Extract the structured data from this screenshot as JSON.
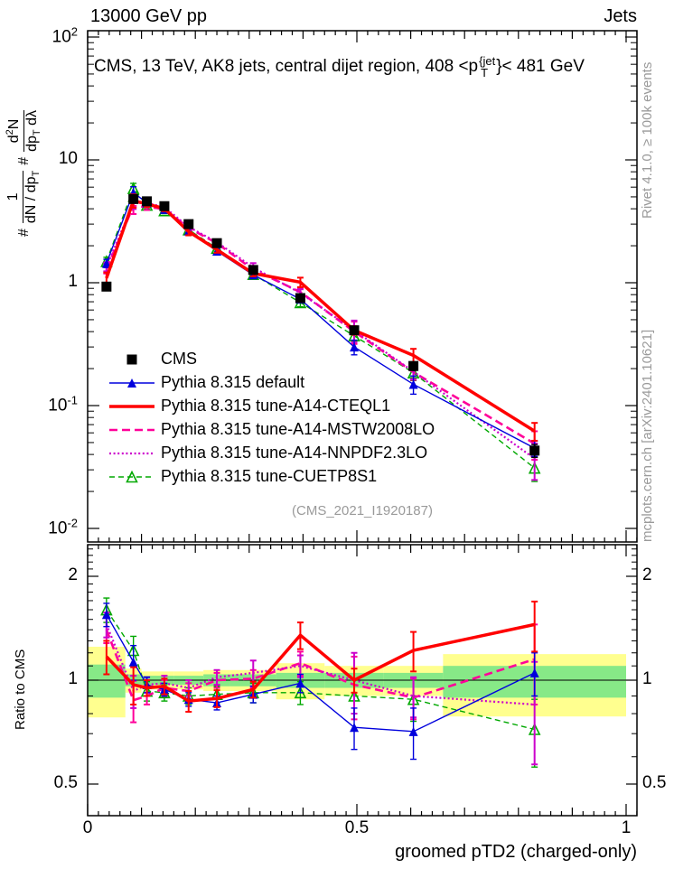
{
  "header": {
    "beam": "13000 GeV pp",
    "category": "Jets"
  },
  "plot_title_tokens": [
    {
      "t": "CMS, 13 TeV, AK8 jets, central dijet region, 408 <p"
    },
    {
      "stack": {
        "sup": "{jet",
        "sub": "T"
      }
    },
    {
      "t": "}< 481 GeV"
    }
  ],
  "watermark": "(CMS_2021_I1920187)",
  "side_notes": {
    "top": "Rivet 4.1.0, ≥ 100k events",
    "bottom": "mcplots.cern.ch [arXiv:2401.10621]"
  },
  "xlabel": "groomed pTD2 (charged-only)",
  "ratio_ylabel": "Ratio to CMS",
  "main_ylabel": {
    "hash1": "#",
    "f1_num": "1",
    "f1_den": [
      {
        "t": "dN / dp"
      },
      {
        "sub": "T"
      }
    ],
    "hash2": "#",
    "f2_num": [
      {
        "t": "d"
      },
      {
        "sup": "2"
      },
      {
        "t": "N"
      }
    ],
    "f2_den": [
      {
        "t": "dp"
      },
      {
        "sub": "T"
      },
      {
        "t": " dλ"
      }
    ]
  },
  "colors": {
    "cms": "#000000",
    "pythia_default": "#0000dd",
    "cteql1": "#ff0000",
    "mstw": "#ff0099",
    "nnpdf": "#cc00cc",
    "cuetp8s1": "#00a800",
    "band_outer": "#ffff8f",
    "band_inner": "#87e987",
    "note_gray": "#9a9a9a"
  },
  "chart_data": {
    "type": "line",
    "title": "CMS, 13 TeV, AK8 jets, central dijet region, 408 < pT{jet} < 481 GeV",
    "xlabel": "groomed pTD2 (charged-only)",
    "ylabel": "# 1/(dN/dpT)  # d2N/(dpT dlambda)",
    "ratio_ylabel": "Ratio to CMS",
    "legend_position": "inside-left-middle",
    "grid": false,
    "x_scale": "linear",
    "y_scale_main": "log",
    "y_scale_ratio": "log",
    "xlim": [
      0,
      1.02
    ],
    "ylim_main": [
      0.0078,
      112
    ],
    "ylim_ratio": [
      0.405,
      2.47
    ],
    "x_ticks": {
      "values": [
        0,
        0.5,
        1
      ],
      "labels": [
        "0",
        "0.5",
        "1"
      ]
    },
    "y_ticks_main": {
      "values": [
        100,
        10,
        1,
        0.1,
        0.01
      ],
      "labels": [
        "10^{2}",
        "10",
        "1",
        "10^{-1}",
        "10^{-2}"
      ]
    },
    "y_ticks_ratio": {
      "values": [
        2,
        1,
        0.5
      ],
      "labels": [
        "2",
        "1",
        "0.5"
      ]
    },
    "x": [
      0.035,
      0.085,
      0.11,
      0.1425,
      0.1875,
      0.24,
      0.3075,
      0.395,
      0.495,
      0.605,
      0.83
    ],
    "bin_edges": [
      0,
      0.07,
      0.1,
      0.125,
      0.16,
      0.215,
      0.265,
      0.35,
      0.44,
      0.55,
      0.66,
      1.0
    ],
    "series": [
      {
        "name": "CMS",
        "color": "#000000",
        "line": "none",
        "width": 0,
        "marker": "square",
        "marker_size": 11,
        "values": [
          0.93,
          4.8,
          4.6,
          4.2,
          3.0,
          2.1,
          1.27,
          0.75,
          0.41,
          0.21,
          0.043
        ],
        "rel_err": [
          0.04,
          0.03,
          0.03,
          0.03,
          0.03,
          0.03,
          0.04,
          0.05,
          0.06,
          0.08,
          0.12
        ],
        "ratio": [
          1,
          1,
          1,
          1,
          1,
          1,
          1,
          1,
          1,
          1,
          1
        ],
        "ratio_err": [
          0,
          0,
          0,
          0,
          0,
          0,
          0,
          0,
          0,
          0,
          0
        ]
      },
      {
        "name": "Pythia 8.315 default",
        "color": "#0000dd",
        "line": "solid",
        "width": 1.4,
        "marker": "triangle",
        "marker_size": 10,
        "values": [
          1.44,
          5.42,
          4.46,
          3.95,
          2.64,
          1.81,
          1.16,
          0.735,
          0.3,
          0.149,
          0.045
        ],
        "ratio": [
          1.55,
          1.13,
          0.97,
          0.94,
          0.88,
          0.86,
          0.91,
          0.98,
          0.73,
          0.71,
          1.05
        ],
        "ratio_err": [
          0.12,
          0.13,
          0.05,
          0.04,
          0.04,
          0.04,
          0.05,
          0.06,
          0.1,
          0.12,
          0.15
        ]
      },
      {
        "name": "Pythia 8.315 tune-A14-CTEQL1",
        "color": "#ff0000",
        "line": "solid",
        "width": 3.5,
        "marker": "none",
        "marker_size": 0,
        "values": [
          1.09,
          4.66,
          4.37,
          4.03,
          2.61,
          1.86,
          1.19,
          1.01,
          0.41,
          0.256,
          0.062
        ],
        "ratio": [
          1.17,
          0.97,
          0.95,
          0.96,
          0.87,
          0.885,
          0.94,
          1.35,
          1.0,
          1.22,
          1.45
        ],
        "ratio_err": [
          0.13,
          0.12,
          0.05,
          0.05,
          0.06,
          0.05,
          0.05,
          0.12,
          0.08,
          0.16,
          0.24
        ]
      },
      {
        "name": "Pythia 8.315 tune-A14-MSTW2008LO",
        "color": "#ff0099",
        "line": "dashed",
        "width": 2.6,
        "marker": "none",
        "marker_size": 0,
        "values": [
          1.3,
          4.2,
          4.14,
          3.99,
          2.79,
          2.1,
          1.28,
          0.84,
          0.4,
          0.187,
          0.049
        ],
        "ratio": [
          1.4,
          0.875,
          0.9,
          0.95,
          0.93,
          1.0,
          1.01,
          1.12,
          0.97,
          0.89,
          1.15
        ],
        "ratio_err": [
          0.12,
          0.12,
          0.05,
          0.05,
          0.05,
          0.05,
          0.06,
          0.09,
          0.2,
          0.12,
          0.3
        ]
      },
      {
        "name": "Pythia 8.315 tune-A14-NNPDF2.3LO",
        "color": "#cc00cc",
        "line": "dotted",
        "width": 2.2,
        "marker": "none",
        "marker_size": 0,
        "values": [
          1.35,
          4.46,
          4.46,
          4.12,
          2.85,
          2.14,
          1.33,
          0.825,
          0.41,
          0.189,
          0.037
        ],
        "ratio": [
          1.45,
          0.93,
          0.97,
          0.98,
          0.95,
          1.02,
          1.05,
          1.1,
          1.0,
          0.9,
          0.85
        ],
        "ratio_err": [
          0.12,
          0.1,
          0.05,
          0.05,
          0.05,
          0.05,
          0.09,
          0.08,
          0.2,
          0.12,
          0.28
        ]
      },
      {
        "name": "Pythia 8.315 tune-CUETP8S1",
        "color": "#00a800",
        "line": "dashed-small",
        "width": 1.4,
        "marker": "triangle-open",
        "marker_size": 11,
        "values": [
          1.49,
          5.86,
          4.28,
          3.86,
          2.7,
          1.91,
          1.17,
          0.69,
          0.37,
          0.185,
          0.031
        ],
        "ratio": [
          1.6,
          1.22,
          0.93,
          0.92,
          0.9,
          0.91,
          0.92,
          0.92,
          0.9,
          0.88,
          0.72
        ],
        "ratio_err": [
          0.13,
          0.12,
          0.06,
          0.05,
          0.05,
          0.05,
          0.06,
          0.07,
          0.1,
          0.12,
          0.16
        ]
      }
    ],
    "ratio_bands": {
      "outer": [
        [
          0.78,
          1.25
        ],
        [
          0.92,
          1.08
        ],
        [
          0.94,
          1.06
        ],
        [
          0.94,
          1.06
        ],
        [
          0.94,
          1.06
        ],
        [
          0.93,
          1.07
        ],
        [
          0.93,
          1.07
        ],
        [
          0.88,
          1.12
        ],
        [
          0.9,
          1.1
        ],
        [
          0.9,
          1.1
        ],
        [
          0.785,
          1.19
        ]
      ],
      "inner": [
        [
          0.89,
          1.11
        ],
        [
          0.96,
          1.04
        ],
        [
          0.97,
          1.03
        ],
        [
          0.97,
          1.03
        ],
        [
          0.97,
          1.03
        ],
        [
          0.96,
          1.04
        ],
        [
          0.96,
          1.04
        ],
        [
          0.95,
          1.05
        ],
        [
          0.95,
          1.05
        ],
        [
          0.95,
          1.05
        ],
        [
          0.89,
          1.1
        ]
      ]
    }
  }
}
